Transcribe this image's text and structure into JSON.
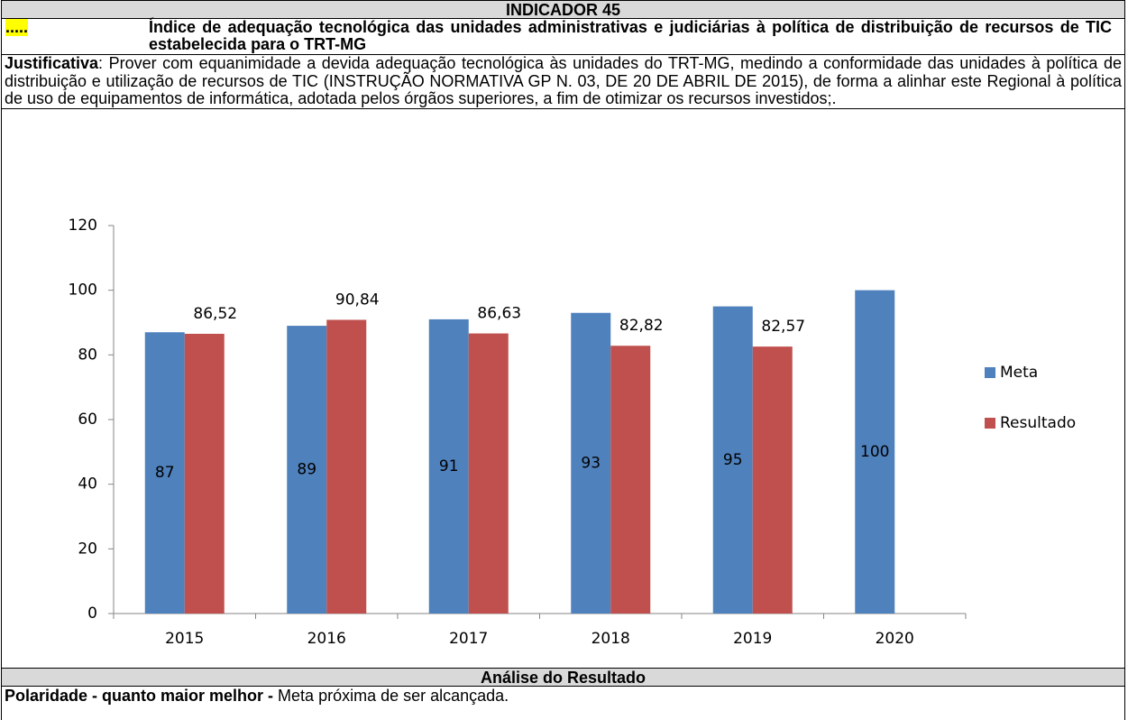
{
  "header": {
    "title": "INDICADOR 45",
    "marker": ".....",
    "subtitle": "Índice de adequação tecnológica das unidades administrativas e judiciárias à política de distribuição de recursos de TIC estabelecida para o TRT-MG"
  },
  "justification": {
    "label": "Justificativa",
    "text": ": Prover com equanimidade a devida adequação tecnológica às unidades do TRT-MG, medindo a conformidade das unidades à política de distribuição e utilização de recursos de TIC (INSTRUÇÃO NORMATIVA GP N. 03, DE 20 DE ABRIL DE 2015), de forma a alinhar este Regional à política de uso de equipamentos de informática, adotada pelos órgãos superiores, a fim de otimizar os recursos investidos;."
  },
  "chart_data": {
    "type": "bar",
    "categories": [
      "2015",
      "2016",
      "2017",
      "2018",
      "2019",
      "2020"
    ],
    "series": [
      {
        "name": "Meta",
        "color": "#4f81bd",
        "values": [
          87,
          89,
          91,
          93,
          95,
          100
        ]
      },
      {
        "name": "Resultado",
        "color": "#c0504d",
        "values": [
          86.52,
          90.84,
          86.63,
          82.82,
          82.57,
          null
        ],
        "value_labels": [
          "86,52",
          "90,84",
          "86,63",
          "82,82",
          "82,57",
          null
        ]
      }
    ],
    "ylim": [
      0,
      120
    ],
    "yticks": [
      0,
      20,
      40,
      60,
      80,
      100,
      120
    ],
    "grid": false,
    "legend": "right"
  },
  "analysis": {
    "title": "Análise do Resultado",
    "label": "Polaridade - quanto maior melhor -",
    "text": " Meta próxima de ser alcançada."
  }
}
